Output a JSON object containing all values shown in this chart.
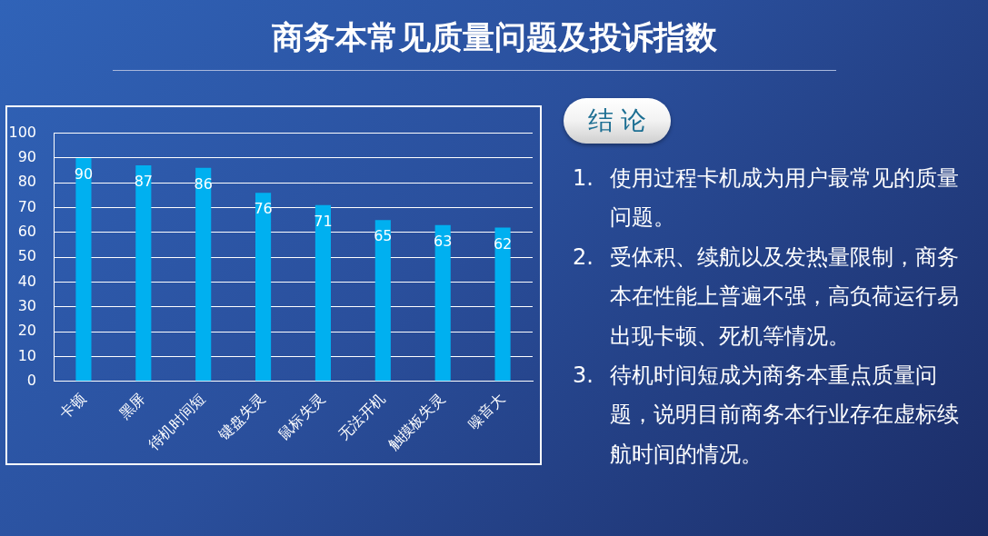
{
  "chart_data": {
    "type": "bar",
    "title": "商务本常见质量问题及投诉指数",
    "categories": [
      "卡顿",
      "黑屏",
      "待机时间短",
      "键盘失灵",
      "鼠标失灵",
      "无法开机",
      "触摸板失灵",
      "噪音大"
    ],
    "values": [
      90,
      87,
      86,
      76,
      71,
      65,
      63,
      62
    ],
    "color": "#00b0f0",
    "ylim": [
      0,
      100
    ],
    "yticks": [
      0,
      10,
      20,
      30,
      40,
      50,
      60,
      70,
      80,
      90,
      100
    ],
    "grid": "y",
    "data_labels": true,
    "annotations": [
      "结 论",
      "1. 使用过程卡机成为用户最常见的质量问题。",
      "2. 受体积、续航以及发热量限制，商务本在性能上普遍不强，高负荷运行易出现卡顿、死机等情况。",
      "3. 待机时间短成为商务本重点质量问题，说明目前商务本行业存在虚标续航时间的情况。"
    ]
  }
}
